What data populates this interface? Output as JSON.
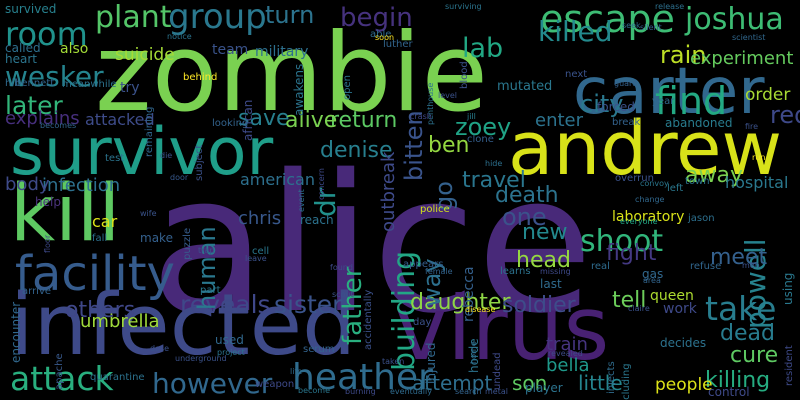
{
  "words": [
    {
      "id": "alice",
      "text": "alice",
      "color": "#482979"
    },
    {
      "id": "zombie",
      "text": "zombie",
      "color": "#7ad151"
    },
    {
      "id": "infected",
      "text": "infected",
      "color": "#3e4a89"
    },
    {
      "id": "virus",
      "text": "virus",
      "color": "#482173"
    },
    {
      "id": "survivor",
      "text": "survivor",
      "color": "#1f9e89"
    },
    {
      "id": "andrew",
      "text": "andrew",
      "color": "#d8e219"
    },
    {
      "id": "carter",
      "text": "carter",
      "color": "#31688e"
    },
    {
      "id": "kill",
      "text": "kill",
      "color": "#5ec962"
    },
    {
      "id": "facility",
      "text": "facility",
      "color": "#365c8d"
    },
    {
      "id": "escape",
      "text": "escape",
      "color": "#3dbc74"
    },
    {
      "id": "find",
      "text": "find",
      "color": "#23a983"
    },
    {
      "id": "group",
      "text": "group",
      "color": "#2a788e"
    },
    {
      "id": "heather",
      "text": "heather",
      "color": "#2f6c8e"
    },
    {
      "id": "attack",
      "text": "attack",
      "color": "#29af7f"
    },
    {
      "id": "shoot",
      "text": "shoot",
      "color": "#31b57b"
    },
    {
      "id": "building",
      "text": "building",
      "color": "#22a785"
    },
    {
      "id": "take",
      "text": "take",
      "color": "#287d8e"
    },
    {
      "id": "reveals",
      "text": "reveals",
      "color": "#3f4889"
    },
    {
      "id": "room",
      "text": "room",
      "color": "#20928c"
    },
    {
      "id": "plant",
      "text": "plant",
      "color": "#54c568"
    },
    {
      "id": "joshua",
      "text": "joshua",
      "color": "#3dbc74"
    },
    {
      "id": "killed",
      "text": "killed",
      "color": "#238a8d"
    },
    {
      "id": "lab",
      "text": "lab",
      "color": "#22a884"
    },
    {
      "id": "begin",
      "text": "begin",
      "color": "#46327e"
    },
    {
      "id": "turn",
      "text": "turn",
      "color": "#2c738e"
    },
    {
      "id": "rain",
      "text": "rain",
      "color": "#bddf26"
    },
    {
      "id": "experiment",
      "text": "experiment",
      "color": "#65cb5e"
    },
    {
      "id": "suicide",
      "text": "suicide",
      "color": "#a5db36"
    },
    {
      "id": "team",
      "text": "team",
      "color": "#3a538b"
    },
    {
      "id": "military",
      "text": "military",
      "color": "#2d708e"
    },
    {
      "id": "wesker",
      "text": "wesker",
      "color": "#25848e"
    },
    {
      "id": "later",
      "text": "later",
      "color": "#32b67a"
    },
    {
      "id": "city",
      "text": "city",
      "color": "#2a788e"
    },
    {
      "id": "zoey",
      "text": "zoey",
      "color": "#20a386"
    },
    {
      "id": "red",
      "text": "red",
      "color": "#3e4989"
    },
    {
      "id": "order",
      "text": "order",
      "color": "#a8db34"
    },
    {
      "id": "ben",
      "text": "ben",
      "color": "#93d741"
    },
    {
      "id": "save",
      "text": "save",
      "color": "#277f8e"
    },
    {
      "id": "return",
      "text": "return",
      "color": "#5cc863"
    },
    {
      "id": "alive",
      "text": "alive",
      "color": "#7ad151"
    },
    {
      "id": "enter",
      "text": "enter",
      "color": "#2c738e"
    },
    {
      "id": "attacked",
      "text": "attacked",
      "color": "#3e4c8a"
    },
    {
      "id": "explains",
      "text": "explains",
      "color": "#472f7d"
    },
    {
      "id": "infection",
      "text": "infection",
      "color": "#2d708e"
    },
    {
      "id": "denise",
      "text": "denise",
      "color": "#277f8e"
    },
    {
      "id": "death",
      "text": "death",
      "color": "#2c738e"
    },
    {
      "id": "travel",
      "text": "travel",
      "color": "#2a768e"
    },
    {
      "id": "away",
      "text": "away",
      "color": "#7ad151"
    },
    {
      "id": "hospital",
      "text": "hospital",
      "color": "#2a788e"
    },
    {
      "id": "body",
      "text": "body",
      "color": "#3e4a89"
    },
    {
      "id": "american",
      "text": "american",
      "color": "#2d708e"
    },
    {
      "id": "one",
      "text": "one",
      "color": "#3b528b"
    },
    {
      "id": "new",
      "text": "new",
      "color": "#23898e"
    },
    {
      "id": "human",
      "text": "human",
      "color": "#2a788e"
    },
    {
      "id": "father",
      "text": "father",
      "color": "#29af7f"
    },
    {
      "id": "car",
      "text": "car",
      "color": "#dde318"
    },
    {
      "id": "laboratory",
      "text": "laboratory",
      "color": "#dae319"
    },
    {
      "id": "chris",
      "text": "chris",
      "color": "#38588c"
    },
    {
      "id": "fight",
      "text": "fight",
      "color": "#443983"
    },
    {
      "id": "powell",
      "text": "powell",
      "color": "#26828e"
    },
    {
      "id": "umbrella",
      "text": "umbrella",
      "color": "#9fda3a"
    },
    {
      "id": "sister",
      "text": "sister",
      "color": "#3a538b"
    },
    {
      "id": "head",
      "text": "head",
      "color": "#95d840"
    },
    {
      "id": "meet",
      "text": "meet",
      "color": "#34608d"
    },
    {
      "id": "daughter",
      "text": "daughter",
      "color": "#8ed645"
    },
    {
      "id": "soldier",
      "text": "soldier",
      "color": "#3e4c8a"
    },
    {
      "id": "tell",
      "text": "tell",
      "color": "#6ccd5a"
    },
    {
      "id": "dead",
      "text": "dead",
      "color": "#287c8e"
    },
    {
      "id": "cure",
      "text": "cure",
      "color": "#5ec962"
    },
    {
      "id": "however",
      "text": "however",
      "color": "#31688e"
    },
    {
      "id": "killing",
      "text": "killing",
      "color": "#26ad81"
    },
    {
      "id": "attempt",
      "text": "attempt",
      "color": "#2e6e8e"
    },
    {
      "id": "son",
      "text": "son",
      "color": "#5ec962"
    },
    {
      "id": "little",
      "text": "little",
      "color": "#25858e"
    },
    {
      "id": "people",
      "text": "people",
      "color": "#dde318"
    },
    {
      "id": "bella",
      "text": "bella",
      "color": "#1f998a"
    },
    {
      "id": "train",
      "text": "train",
      "color": "#463480"
    },
    {
      "id": "queen",
      "text": "queen",
      "color": "#addc30"
    },
    {
      "id": "work",
      "text": "work",
      "color": "#3e4989"
    },
    {
      "id": "others",
      "text": "others",
      "color": "#3f4788"
    },
    {
      "id": "go",
      "text": "go",
      "color": "#34618d"
    },
    {
      "id": "way",
      "text": "way",
      "color": "#2d708e"
    },
    {
      "id": "dr",
      "text": "dr",
      "color": "#21918c"
    },
    {
      "id": "also",
      "text": "also",
      "color": "#a2da37"
    },
    {
      "id": "bitten",
      "text": "bitten",
      "color": "#3a548c"
    },
    {
      "id": "outbreak",
      "text": "outbreak",
      "color": "#3e4a89"
    },
    {
      "id": "mutated",
      "text": "mutated",
      "color": "#2a778e"
    },
    {
      "id": "survived",
      "text": "survived",
      "color": "#27808e"
    },
    {
      "id": "called",
      "text": "called",
      "color": "#2e6f8e"
    },
    {
      "id": "heart",
      "text": "heart",
      "color": "#2b758e"
    },
    {
      "id": "hill",
      "text": "hill",
      "color": "#306a8e"
    },
    {
      "id": "bennett",
      "text": "bennett",
      "color": "#32658e"
    },
    {
      "id": "meanwhile",
      "text": "meanwhile",
      "color": "#2c728e"
    },
    {
      "id": "try",
      "text": "try",
      "color": "#3b528b"
    },
    {
      "id": "remaining",
      "text": "remaining",
      "color": "#31668e"
    },
    {
      "id": "behind",
      "text": "behind",
      "color": "#fde725"
    },
    {
      "id": "notice",
      "text": "notice",
      "color": "#2b748e"
    },
    {
      "id": "african",
      "text": "african",
      "color": "#3e4a89"
    },
    {
      "id": "awakens",
      "text": "awakens",
      "color": "#2b748e"
    },
    {
      "id": "open",
      "text": "open",
      "color": "#2c738e"
    },
    {
      "id": "able",
      "text": "able",
      "color": "#2f6b8e"
    },
    {
      "id": "soon",
      "text": "soon",
      "color": "#fde725"
    },
    {
      "id": "luther",
      "text": "luther",
      "color": "#32658e"
    },
    {
      "id": "surviving",
      "text": "surviving",
      "color": "#2b758e"
    },
    {
      "id": "penthouse",
      "text": "penthouse",
      "color": "#2c728e"
    },
    {
      "id": "blood",
      "text": "blood",
      "color": "#3b518b"
    },
    {
      "id": "release",
      "text": "release",
      "color": "#2d708e"
    },
    {
      "id": "seek",
      "text": "seek",
      "color": "#2f6c8e"
    },
    {
      "id": "silent",
      "text": "silent",
      "color": "#365c8d"
    },
    {
      "id": "scientist",
      "text": "scientist",
      "color": "#31688e"
    },
    {
      "id": "next",
      "text": "next",
      "color": "#3a538b"
    },
    {
      "id": "year",
      "text": "year",
      "color": "#31688e"
    },
    {
      "id": "level",
      "text": "level",
      "color": "#3b528b"
    },
    {
      "id": "crash",
      "text": "crash",
      "color": "#3f4788"
    },
    {
      "id": "jill",
      "text": "jill",
      "color": "#287d8e"
    },
    {
      "id": "clone",
      "text": "clone",
      "color": "#355f8d"
    },
    {
      "id": "hide",
      "text": "hide",
      "color": "#2d708e"
    },
    {
      "id": "forced",
      "text": "forced",
      "color": "#3b528b"
    },
    {
      "id": "break",
      "text": "break",
      "color": "#33628d"
    },
    {
      "id": "abandoned",
      "text": "abandoned",
      "color": "#287c8e"
    },
    {
      "id": "fire",
      "text": "fire",
      "color": "#3b528b"
    },
    {
      "id": "guard",
      "text": "guard",
      "color": "#34618d"
    },
    {
      "id": "becomes",
      "text": "becomes",
      "color": "#32658e"
    },
    {
      "id": "looking",
      "text": "looking",
      "color": "#33638d"
    },
    {
      "id": "subject",
      "text": "subject",
      "color": "#3b528b"
    },
    {
      "id": "test",
      "text": "test",
      "color": "#2b748e"
    },
    {
      "id": "die",
      "text": "die",
      "color": "#3b528b"
    },
    {
      "id": "door",
      "text": "door",
      "color": "#38598c"
    },
    {
      "id": "help",
      "text": "help",
      "color": "#4a337c"
    },
    {
      "id": "puzzle",
      "text": "puzzle",
      "color": "#365d8d"
    },
    {
      "id": "event",
      "text": "event",
      "color": "#2d708e"
    },
    {
      "id": "wife",
      "text": "wife",
      "color": "#3a538b"
    },
    {
      "id": "reach",
      "text": "reach",
      "color": "#2c728e"
    },
    {
      "id": "cell",
      "text": "cell",
      "color": "#2a788e"
    },
    {
      "id": "leave",
      "text": "leave",
      "color": "#3b528b"
    },
    {
      "id": "trap",
      "text": "trap",
      "color": "#3b528b"
    },
    {
      "id": "accidentally",
      "text": "accidentally",
      "color": "#3b518b"
    },
    {
      "id": "police",
      "text": "police",
      "color": "#d2e21b"
    },
    {
      "id": "rebecca",
      "text": "rebecca",
      "color": "#34608d"
    },
    {
      "id": "learns",
      "text": "learns",
      "color": "#2c728e"
    },
    {
      "id": "everyone",
      "text": "everyone",
      "color": "#21a685"
    },
    {
      "id": "appears",
      "text": "appears",
      "color": "#355f8d"
    },
    {
      "id": "last",
      "text": "last",
      "color": "#2f6b8e"
    },
    {
      "id": "convoy",
      "text": "convoy",
      "color": "#2a778e"
    },
    {
      "id": "overrun",
      "text": "overrun",
      "color": "#3b528b"
    },
    {
      "id": "change",
      "text": "change",
      "color": "#31688e"
    },
    {
      "id": "left",
      "text": "left",
      "color": "#2a788e"
    },
    {
      "id": "town",
      "text": "town",
      "color": "#2b748e"
    },
    {
      "id": "jason",
      "text": "jason",
      "color": "#2d708e"
    },
    {
      "id": "run",
      "text": "run",
      "color": "#fde725"
    },
    {
      "id": "gas",
      "text": "gas",
      "color": "#31688e"
    },
    {
      "id": "area",
      "text": "area",
      "color": "#32658e"
    },
    {
      "id": "real",
      "text": "real",
      "color": "#2f6c8e"
    },
    {
      "id": "refuse",
      "text": "refuse",
      "color": "#31668e"
    },
    {
      "id": "men",
      "text": "men",
      "color": "#3b518b"
    },
    {
      "id": "using",
      "text": "using",
      "color": "#2a788e"
    },
    {
      "id": "resident",
      "text": "resident",
      "color": "#3e4a89"
    },
    {
      "id": "encounter",
      "text": "encounter",
      "color": "#31688e"
    },
    {
      "id": "arrive",
      "text": "arrive",
      "color": "#33638d"
    },
    {
      "id": "floor",
      "text": "floor",
      "color": "#3e4a89"
    },
    {
      "id": "fall",
      "text": "fall",
      "color": "#2d708e"
    },
    {
      "id": "make",
      "text": "make",
      "color": "#34608d"
    },
    {
      "id": "apache",
      "text": "apache",
      "color": "#38598c"
    },
    {
      "id": "part",
      "text": "part",
      "color": "#2a788e"
    },
    {
      "id": "used",
      "text": "used",
      "color": "#31688e"
    },
    {
      "id": "project",
      "text": "project",
      "color": "#2b748e"
    },
    {
      "id": "serum",
      "text": "serum",
      "color": "#33638d"
    },
    {
      "id": "scout",
      "text": "scout",
      "color": "#3b518b"
    },
    {
      "id": "found",
      "text": "found",
      "color": "#3e4a89"
    },
    {
      "id": "quarantine",
      "text": "quarantine",
      "color": "#2c728e"
    },
    {
      "id": "underground",
      "text": "underground",
      "color": "#3b528b"
    },
    {
      "id": "weapon",
      "text": "weapon",
      "color": "#3e4a89"
    },
    {
      "id": "life",
      "text": "life",
      "color": "#2f6c8e"
    },
    {
      "id": "become",
      "text": "become",
      "color": "#2a778e"
    },
    {
      "id": "burning",
      "text": "burning",
      "color": "#3e4a89"
    },
    {
      "id": "eventually",
      "text": "eventually",
      "color": "#2f6b8e"
    },
    {
      "id": "search",
      "text": "search",
      "color": "#33638d"
    },
    {
      "id": "metal",
      "text": "metal",
      "color": "#3b528b"
    },
    {
      "id": "player",
      "text": "player",
      "color": "#2c738e"
    },
    {
      "id": "taken",
      "text": "taken",
      "color": "#3b518b"
    },
    {
      "id": "revealed",
      "text": "revealed",
      "color": "#3e4a89"
    },
    {
      "id": "home",
      "text": "home",
      "color": "#31688e"
    },
    {
      "id": "undead",
      "text": "undead",
      "color": "#3e4a89"
    },
    {
      "id": "injects",
      "text": "injects",
      "color": "#2f6c8e"
    },
    {
      "id": "including",
      "text": "including",
      "color": "#2a778e"
    },
    {
      "id": "decides",
      "text": "decides",
      "color": "#2c728e"
    },
    {
      "id": "control",
      "text": "control",
      "color": "#3e4a89"
    },
    {
      "id": "claire",
      "text": "claire",
      "color": "#3b528b"
    },
    {
      "id": "horde",
      "text": "horde",
      "color": "#2c738e"
    },
    {
      "id": "injured",
      "text": "injured",
      "color": "#31688e"
    },
    {
      "id": "day",
      "text": "day",
      "color": "#3b518b"
    },
    {
      "id": "disease",
      "text": "disease",
      "color": "#fde725"
    },
    {
      "id": "female",
      "text": "female",
      "color": "#33638d"
    },
    {
      "id": "missing",
      "text": "missing",
      "color": "#3e4a89"
    },
    {
      "id": "dose",
      "text": "dose",
      "color": "#3b518b"
    },
    {
      "id": "concern",
      "text": "concern",
      "color": "#3e4a89"
    }
  ]
}
